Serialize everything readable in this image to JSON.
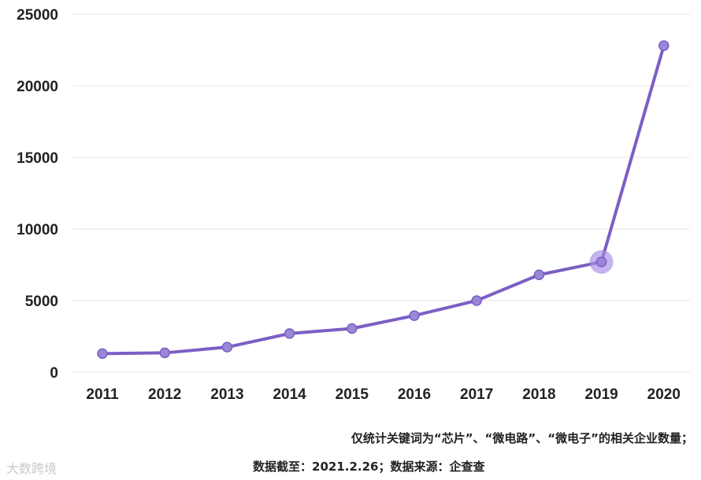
{
  "chart_data": {
    "type": "line",
    "categories": [
      "2011",
      "2012",
      "2013",
      "2014",
      "2015",
      "2016",
      "2017",
      "2018",
      "2019",
      "2020"
    ],
    "series": [
      {
        "values": [
          1300,
          1350,
          1750,
          2700,
          3050,
          3950,
          5000,
          6800,
          7700,
          22800
        ]
      }
    ],
    "ylim": [
      0,
      25000
    ],
    "yticks": [
      0,
      5000,
      10000,
      15000,
      20000,
      25000
    ],
    "grid": "horizontal",
    "highlight_index": 8,
    "colors": {
      "line": "#7b5fc4",
      "marker": "#9b86d8",
      "highlight": "#a48ce3",
      "grid": "#e6e6e6"
    }
  },
  "notes": {
    "line1": "仅统计关键词为“芯片”、“微电路”、“微电子”的相关企业数量；",
    "line2": "数据截至：2021.2.26；数据来源：企查查"
  },
  "watermark": {
    "text": "大数跨境"
  }
}
